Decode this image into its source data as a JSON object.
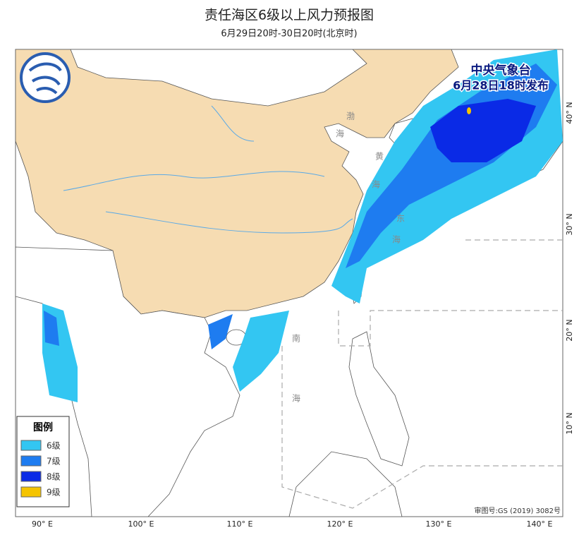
{
  "header": {
    "title": "责任海区6级以上风力预报图",
    "subtitle": "6月29日20时-30日20时(北京时)"
  },
  "issuer": {
    "name": "中央气象台",
    "time": "6月28日18时发布"
  },
  "legend": {
    "title": "图例",
    "items": [
      {
        "label": "6级",
        "color": "#33c6f2"
      },
      {
        "label": "7级",
        "color": "#1e7cf0"
      },
      {
        "label": "8级",
        "color": "#0a2ae6"
      },
      {
        "label": "9级",
        "color": "#f5c400"
      }
    ]
  },
  "axes": {
    "longitude": [
      "90° E",
      "100° E",
      "110° E",
      "120° E",
      "130° E",
      "140° E"
    ],
    "latitude": [
      "40° N",
      "30° N",
      "20° N",
      "10° N"
    ]
  },
  "sea_labels": [
    "渤",
    "海",
    "黄",
    "海",
    "东",
    "海",
    "南",
    "海"
  ],
  "footer": {
    "approval": "审图号:GS (2019) 3082号"
  }
}
